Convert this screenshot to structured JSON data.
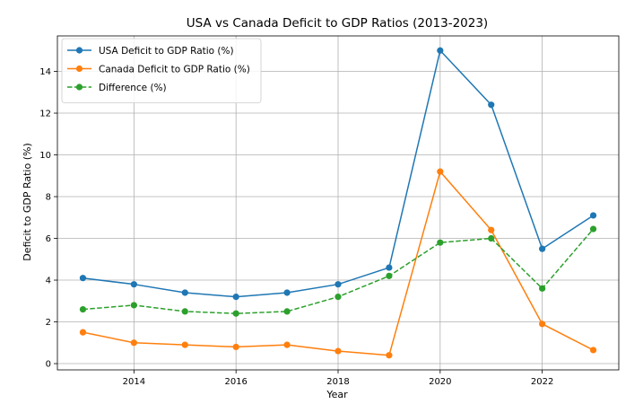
{
  "chart_data": {
    "type": "line",
    "title": "USA vs Canada Deficit to GDP Ratios (2013-2023)",
    "xlabel": "Year",
    "ylabel": "Deficit to GDP Ratio (%)",
    "x": [
      2013,
      2014,
      2015,
      2016,
      2017,
      2018,
      2019,
      2020,
      2021,
      2022,
      2023
    ],
    "xlim": [
      2012.5,
      2023.5
    ],
    "ylim": [
      -0.3,
      15.7
    ],
    "xticks": [
      2014,
      2016,
      2018,
      2020,
      2022
    ],
    "yticks": [
      0,
      2,
      4,
      6,
      8,
      10,
      12,
      14
    ],
    "grid": true,
    "legend_position": "top-left",
    "series": [
      {
        "name": "USA Deficit to GDP Ratio (%)",
        "color": "#1f77b4",
        "line_style": "solid",
        "marker": "circle",
        "values": [
          4.1,
          3.8,
          3.4,
          3.2,
          3.4,
          3.8,
          4.6,
          15.0,
          12.4,
          5.5,
          7.1
        ]
      },
      {
        "name": "Canada Deficit to GDP Ratio (%)",
        "color": "#ff7f0e",
        "line_style": "solid",
        "marker": "circle",
        "values": [
          1.5,
          1.0,
          0.9,
          0.8,
          0.9,
          0.6,
          0.4,
          9.2,
          6.4,
          1.9,
          0.65
        ]
      },
      {
        "name": "Difference (%)",
        "color": "#2ca02c",
        "line_style": "dashed",
        "marker": "circle",
        "values": [
          2.6,
          2.8,
          2.5,
          2.4,
          2.5,
          3.2,
          4.2,
          5.8,
          6.0,
          3.6,
          6.45
        ]
      }
    ]
  }
}
